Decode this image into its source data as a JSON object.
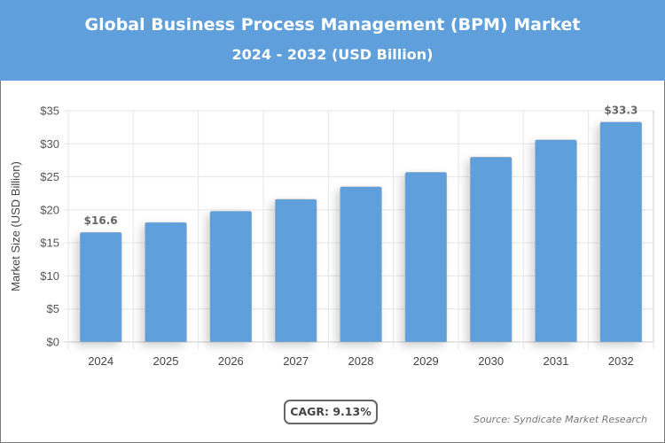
{
  "header": {
    "title": "Global Business Process Management (BPM) Market",
    "subtitle": "2024 - 2032 (USD Billion)"
  },
  "chart_data": {
    "type": "bar",
    "title": "Global Business Process Management (BPM) Market",
    "subtitle": "2024 - 2032 (USD Billion)",
    "categories": [
      "2024",
      "2025",
      "2026",
      "2027",
      "2028",
      "2029",
      "2030",
      "2031",
      "2032"
    ],
    "values": [
      16.6,
      18.1,
      19.8,
      21.6,
      23.5,
      25.7,
      28.0,
      30.6,
      33.3
    ],
    "data_labels": {
      "0": "$16.6",
      "8": "$33.3"
    },
    "xlabel": "",
    "ylabel": "Market Size (USD Billion)",
    "ylim": [
      0,
      35
    ],
    "yticks": [
      "$0",
      "$5",
      "$10",
      "$15",
      "$20",
      "$25",
      "$30",
      "$35"
    ],
    "grid": true,
    "bar_color": "#5f9fdc"
  },
  "footer": {
    "cagr": "CAGR: 9.13%",
    "source": "Source: Syndicate Market Research"
  }
}
